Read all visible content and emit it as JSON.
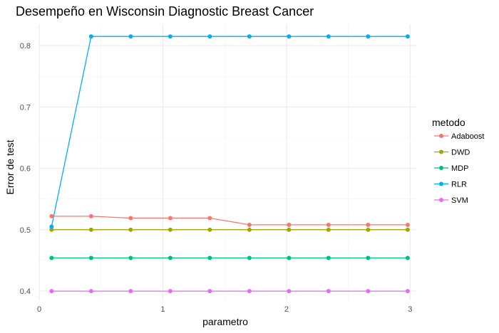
{
  "chart_data": {
    "type": "line",
    "title": "Desempeño en Wisconsin Diagnostic Breast Cancer",
    "xlabel": "parametro",
    "ylabel": "Error de test",
    "xlim": [
      0,
      3.05
    ],
    "ylim": [
      0.385,
      0.835
    ],
    "x_ticks": [
      0,
      1,
      2,
      3
    ],
    "x_tick_labels": [
      "0",
      "1",
      "2",
      "3"
    ],
    "y_ticks": [
      0.4,
      0.5,
      0.6,
      0.7,
      0.8
    ],
    "y_tick_labels": [
      "0.4",
      "0.5",
      "0.6",
      "0.7",
      "0.8"
    ],
    "grid": true,
    "legend_title": "metodo",
    "legend_position": "right",
    "x": [
      0.1,
      0.42,
      0.74,
      1.06,
      1.38,
      1.7,
      2.02,
      2.34,
      2.66,
      2.98
    ],
    "series": [
      {
        "name": "Adaboost",
        "color": "#F8766D",
        "values": [
          0.522,
          0.522,
          0.519,
          0.519,
          0.519,
          0.508,
          0.508,
          0.508,
          0.508,
          0.508
        ]
      },
      {
        "name": "DWD",
        "color": "#A3A500",
        "values": [
          0.5,
          0.5,
          0.5,
          0.5,
          0.5,
          0.5,
          0.5,
          0.5,
          0.5,
          0.5
        ]
      },
      {
        "name": "MDP",
        "color": "#00BF7D",
        "values": [
          0.454,
          0.454,
          0.454,
          0.454,
          0.454,
          0.454,
          0.454,
          0.454,
          0.454,
          0.454
        ]
      },
      {
        "name": "RLR",
        "color": "#00B0F6",
        "values": [
          0.505,
          0.815,
          0.815,
          0.815,
          0.815,
          0.815,
          0.815,
          0.815,
          0.815,
          0.815
        ]
      },
      {
        "name": "SVM",
        "color": "#E76BF3",
        "values": [
          0.4,
          0.4,
          0.4,
          0.4,
          0.4,
          0.4,
          0.4,
          0.4,
          0.4,
          0.4
        ]
      }
    ]
  }
}
